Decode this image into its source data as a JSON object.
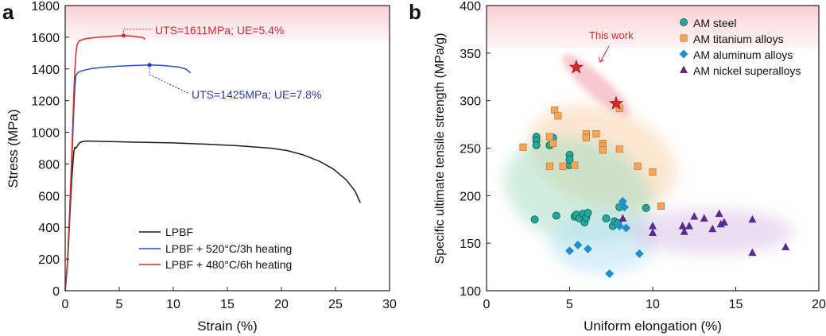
{
  "panels": {
    "a": "a",
    "b": "b"
  },
  "chart_data": [
    {
      "type": "line",
      "xlabel": "Strain (%)",
      "ylabel": "Stress (MPa)",
      "xlim": [
        0,
        30
      ],
      "ylim": [
        0,
        1800
      ],
      "xticks": [
        0,
        5,
        10,
        15,
        20,
        25,
        30
      ],
      "yticks": [
        0,
        200,
        400,
        600,
        800,
        1000,
        1200,
        1400,
        1600,
        1800
      ],
      "shaded_band": {
        "y_from": 1580,
        "y_to": 1800,
        "color": "#fbe1e4"
      },
      "legend_position": "lower-middle",
      "series": [
        {
          "name": "LPBF",
          "color": "#1a1a1a",
          "x": [
            0,
            0.2,
            0.4,
            0.6,
            0.8,
            0.9,
            1.0,
            1.1,
            1.3,
            1.6,
            2.0,
            3,
            5,
            7,
            10,
            13,
            16,
            19,
            20.5,
            22,
            23.5,
            24.8,
            26,
            26.8,
            27.3
          ],
          "y": [
            0,
            150,
            420,
            700,
            880,
            905,
            900,
            912,
            932,
            942,
            945,
            943,
            940,
            937,
            933,
            925,
            915,
            900,
            885,
            858,
            818,
            768,
            700,
            630,
            555
          ]
        },
        {
          "name": "LPBF + 520°C/3h heating",
          "color": "#2a4ac9",
          "x": [
            0,
            0.2,
            0.4,
            0.6,
            0.8,
            0.9,
            1.0,
            1.2,
            1.6,
            2.5,
            4,
            6,
            7.8,
            9,
            10.5,
            11.2,
            11.6
          ],
          "y": [
            0,
            160,
            450,
            800,
            1150,
            1290,
            1360,
            1378,
            1390,
            1403,
            1414,
            1421,
            1425,
            1422,
            1412,
            1398,
            1375
          ]
        },
        {
          "name": "LPBF + 480°C/6h heating",
          "color": "#d42a2e",
          "x": [
            0,
            0.2,
            0.4,
            0.6,
            0.8,
            0.9,
            1.0,
            1.1,
            1.3,
            1.8,
            3,
            4.5,
            5.4,
            6.5,
            7.2,
            7.4
          ],
          "y": [
            0,
            170,
            480,
            850,
            1250,
            1400,
            1500,
            1555,
            1578,
            1590,
            1600,
            1607,
            1611,
            1605,
            1597,
            1588
          ]
        }
      ],
      "annotations": [
        {
          "text": "UTS=1611MPa; UE=5.4%",
          "color": "#d42a2e",
          "point": [
            5.4,
            1611
          ]
        },
        {
          "text": "UTS=1425MPa; UE=7.8%",
          "color": "#2a3aa8",
          "point": [
            7.8,
            1425
          ]
        }
      ]
    },
    {
      "type": "scatter",
      "xlabel": "Uniform elongation (%)",
      "ylabel": "Specific ultimate tensile strength (MPa/g)",
      "xlim": [
        0,
        20
      ],
      "ylim": [
        100,
        400
      ],
      "xticks": [
        0,
        5,
        10,
        15,
        20
      ],
      "yticks": [
        100,
        150,
        200,
        250,
        300,
        350,
        400
      ],
      "shaded_band": {
        "y_from": 355,
        "y_to": 400,
        "color": "#fbe1e4"
      },
      "legend_position": "top-right",
      "annotation": {
        "text": "This work",
        "color": "#d42a2e"
      },
      "series": [
        {
          "name": "AM steel",
          "color": "#25a89a",
          "marker": "circle",
          "points": [
            [
              2.9,
              175
            ],
            [
              3.0,
              262
            ],
            [
              3.0,
              258
            ],
            [
              3.0,
              253
            ],
            [
              3.8,
              253
            ],
            [
              4.0,
              261
            ],
            [
              4.2,
              179
            ],
            [
              5.0,
              243
            ],
            [
              5.0,
              232
            ],
            [
              5.0,
              238
            ],
            [
              5.3,
              178
            ],
            [
              5.4,
              180
            ],
            [
              5.6,
              176
            ],
            [
              5.8,
              181
            ],
            [
              5.9,
              172
            ],
            [
              6.0,
              177
            ],
            [
              6.1,
              182
            ],
            [
              7.2,
              176
            ],
            [
              7.6,
              168
            ],
            [
              7.7,
              173
            ],
            [
              7.9,
              171
            ],
            [
              8.0,
              188
            ],
            [
              9.6,
              187
            ]
          ]
        },
        {
          "name": "AM titanium alloys",
          "color": "#f5a557",
          "marker": "square",
          "points": [
            [
              2.2,
              251
            ],
            [
              3.8,
              262
            ],
            [
              3.8,
              231
            ],
            [
              4.1,
              290
            ],
            [
              4.3,
              284
            ],
            [
              4.0,
              255
            ],
            [
              4.6,
              231
            ],
            [
              5.3,
              232
            ],
            [
              6.0,
              265
            ],
            [
              6.0,
              261
            ],
            [
              6.6,
              265
            ],
            [
              7.0,
              255
            ],
            [
              7.0,
              252
            ],
            [
              7.0,
              248
            ],
            [
              8.0,
              249
            ],
            [
              8.0,
              292
            ],
            [
              9.1,
              231
            ],
            [
              10.0,
              225
            ],
            [
              10.5,
              189
            ]
          ]
        },
        {
          "name": "AM aluminum alloys",
          "color": "#1f8ecf",
          "marker": "diamond",
          "points": [
            [
              5.0,
              142
            ],
            [
              5.5,
              148
            ],
            [
              6.1,
              144
            ],
            [
              7.4,
              118
            ],
            [
              8.0,
              168
            ],
            [
              8.2,
              194
            ],
            [
              8.3,
              188
            ],
            [
              8.4,
              166
            ],
            [
              9.2,
              139
            ]
          ]
        },
        {
          "name": "AM nickel superalloys",
          "color": "#5b2a8c",
          "marker": "triangle",
          "points": [
            [
              8.2,
              176
            ],
            [
              10.0,
              168
            ],
            [
              10.0,
              161
            ],
            [
              11.8,
              168
            ],
            [
              11.9,
              162
            ],
            [
              12.2,
              168
            ],
            [
              12.5,
              178
            ],
            [
              13.1,
              176
            ],
            [
              13.6,
              165
            ],
            [
              14.0,
              181
            ],
            [
              14.1,
              170
            ],
            [
              14.3,
              172
            ],
            [
              16.0,
              175
            ],
            [
              16.0,
              140
            ],
            [
              18.0,
              146
            ]
          ]
        },
        {
          "name": "This work",
          "color": "#d42a2e",
          "marker": "star",
          "points": [
            [
              5.4,
              335
            ],
            [
              7.8,
              297
            ]
          ]
        }
      ]
    }
  ]
}
